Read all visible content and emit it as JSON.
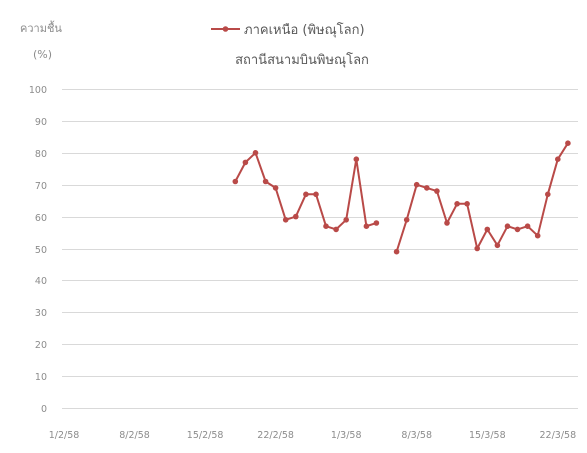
{
  "chart_data": {
    "type": "line",
    "subtitle": "สถานีสนามบินพิษณุโลก",
    "ylabel": "ความชื้น",
    "yunit": "(%)",
    "ylim": [
      0,
      100
    ],
    "yticks": [
      0,
      10,
      20,
      30,
      40,
      50,
      60,
      70,
      80,
      90,
      100
    ],
    "xlim": [
      "1/2/58",
      "24/3/58"
    ],
    "xticks": [
      "1/2/58",
      "8/2/58",
      "15/2/58",
      "22/2/58",
      "1/3/58",
      "8/3/58",
      "15/3/58",
      "22/3/58"
    ],
    "grid": true,
    "legend": "top",
    "x": [
      "18/2/58",
      "19/2/58",
      "20/2/58",
      "21/2/58",
      "22/2/58",
      "23/2/58",
      "24/2/58",
      "25/2/58",
      "26/2/58",
      "27/2/58",
      "28/2/58",
      "1/3/58",
      "2/3/58",
      "3/3/58",
      "4/3/58",
      "5/3/58",
      "6/3/58",
      "7/3/58",
      "8/3/58",
      "9/3/58",
      "10/3/58",
      "11/3/58",
      "12/3/58",
      "13/3/58",
      "14/3/58",
      "15/3/58",
      "16/3/58",
      "17/3/58",
      "18/3/58",
      "19/3/58",
      "20/3/58",
      "21/3/58",
      "22/3/58",
      "23/3/58"
    ],
    "series": [
      {
        "name": "ภาคเหนือ (พิษณุโลก)",
        "color": "#b94a48",
        "values": [
          71,
          77,
          80,
          71,
          69,
          59,
          60,
          67,
          67,
          57,
          56,
          59,
          78,
          57,
          58,
          null,
          49,
          59,
          70,
          69,
          68,
          58,
          64,
          64,
          50,
          56,
          51,
          57,
          56,
          57,
          54,
          67,
          78,
          83
        ]
      }
    ]
  }
}
